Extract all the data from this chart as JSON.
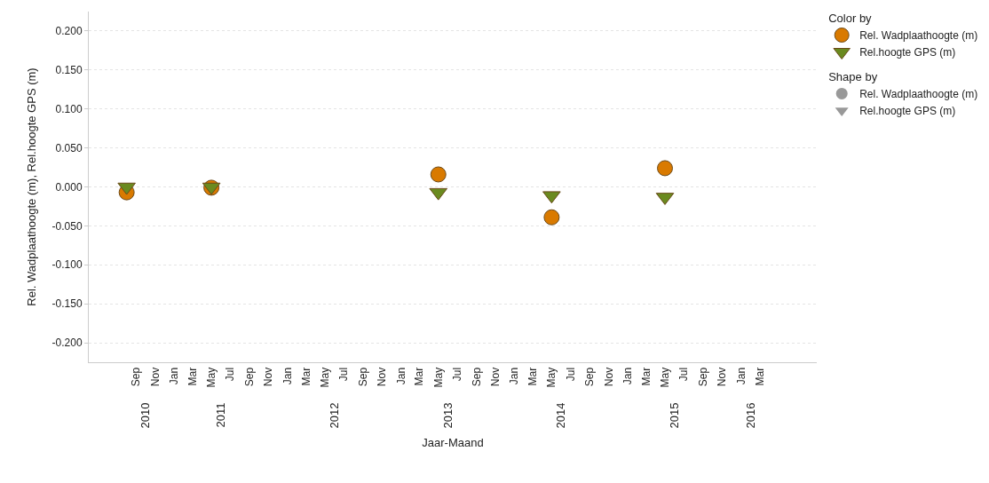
{
  "chart_data": {
    "type": "scatter",
    "xlabel": "Jaar-Maand",
    "ylabel": "Rel. Wadplaathoogte (m), Rel.hoogte GPS (m)",
    "legend_title": "Color by",
    "x": [
      "2010-08",
      "2011-05",
      "2013-05",
      "2014-05",
      "2015-05"
    ],
    "series": [
      {
        "name": "Rel. Wadplaathoogte (m)",
        "color": "#d97a00",
        "marker": "circle",
        "values": [
          -0.007,
          -0.001,
          0.016,
          -0.039,
          0.024
        ]
      },
      {
        "name": "Rel.hoogte GPS (m)",
        "color": "#6a8a1f",
        "marker": "triangle",
        "values": [
          0.0,
          0.0,
          -0.007,
          -0.011,
          -0.013
        ]
      }
    ],
    "xlim": [
      "2010-04",
      "2016-09"
    ],
    "xticks": [
      {
        "value": "2010-09",
        "label": "Sep"
      },
      {
        "value": "2010-11",
        "label": "Nov"
      },
      {
        "value": "2011-01",
        "label": "Jan"
      },
      {
        "value": "2011-03",
        "label": "Mar"
      },
      {
        "value": "2011-05",
        "label": "May"
      },
      {
        "value": "2011-07",
        "label": "Jul"
      },
      {
        "value": "2011-09",
        "label": "Sep"
      },
      {
        "value": "2011-11",
        "label": "Nov"
      },
      {
        "value": "2012-01",
        "label": "Jan"
      },
      {
        "value": "2012-03",
        "label": "Mar"
      },
      {
        "value": "2012-05",
        "label": "May"
      },
      {
        "value": "2012-07",
        "label": "Jul"
      },
      {
        "value": "2012-09",
        "label": "Sep"
      },
      {
        "value": "2012-11",
        "label": "Nov"
      },
      {
        "value": "2013-01",
        "label": "Jan"
      },
      {
        "value": "2013-03",
        "label": "Mar"
      },
      {
        "value": "2013-05",
        "label": "May"
      },
      {
        "value": "2013-07",
        "label": "Jul"
      },
      {
        "value": "2013-09",
        "label": "Sep"
      },
      {
        "value": "2013-11",
        "label": "Nov"
      },
      {
        "value": "2014-01",
        "label": "Jan"
      },
      {
        "value": "2014-03",
        "label": "Mar"
      },
      {
        "value": "2014-05",
        "label": "May"
      },
      {
        "value": "2014-07",
        "label": "Jul"
      },
      {
        "value": "2014-09",
        "label": "Sep"
      },
      {
        "value": "2014-11",
        "label": "Nov"
      },
      {
        "value": "2015-01",
        "label": "Jan"
      },
      {
        "value": "2015-03",
        "label": "Mar"
      },
      {
        "value": "2015-05",
        "label": "May"
      },
      {
        "value": "2015-07",
        "label": "Jul"
      },
      {
        "value": "2015-09",
        "label": "Sep"
      },
      {
        "value": "2015-11",
        "label": "Nov"
      },
      {
        "value": "2016-01",
        "label": "Jan"
      },
      {
        "value": "2016-03",
        "label": "Mar"
      }
    ],
    "ylim": [
      -0.225,
      0.225
    ],
    "yticks": [
      {
        "value": -0.2,
        "label": "-0.200"
      },
      {
        "value": -0.15,
        "label": "-0.150"
      },
      {
        "value": -0.1,
        "label": "-0.100"
      },
      {
        "value": -0.05,
        "label": "-0.050"
      },
      {
        "value": 0.0,
        "label": "0.000"
      },
      {
        "value": 0.05,
        "label": "0.050"
      },
      {
        "value": 0.1,
        "label": "0.100"
      },
      {
        "value": 0.15,
        "label": "0.150"
      },
      {
        "value": 0.2,
        "label": "0.200"
      }
    ],
    "x2lim": [
      "2010-04",
      "2016-09"
    ],
    "x2ticks": [
      {
        "value": "2010-10",
        "label": "2010"
      },
      {
        "value": "2011-06",
        "label": "2011"
      },
      {
        "value": "2012-06",
        "label": "2012"
      },
      {
        "value": "2013-06",
        "label": "2013"
      },
      {
        "value": "2014-06",
        "label": "2014"
      },
      {
        "value": "2015-06",
        "label": "2015"
      },
      {
        "value": "2016-02",
        "label": "2016"
      }
    ],
    "annotations": [
      "Shape by"
    ],
    "grid": "y",
    "legend": "top right"
  }
}
